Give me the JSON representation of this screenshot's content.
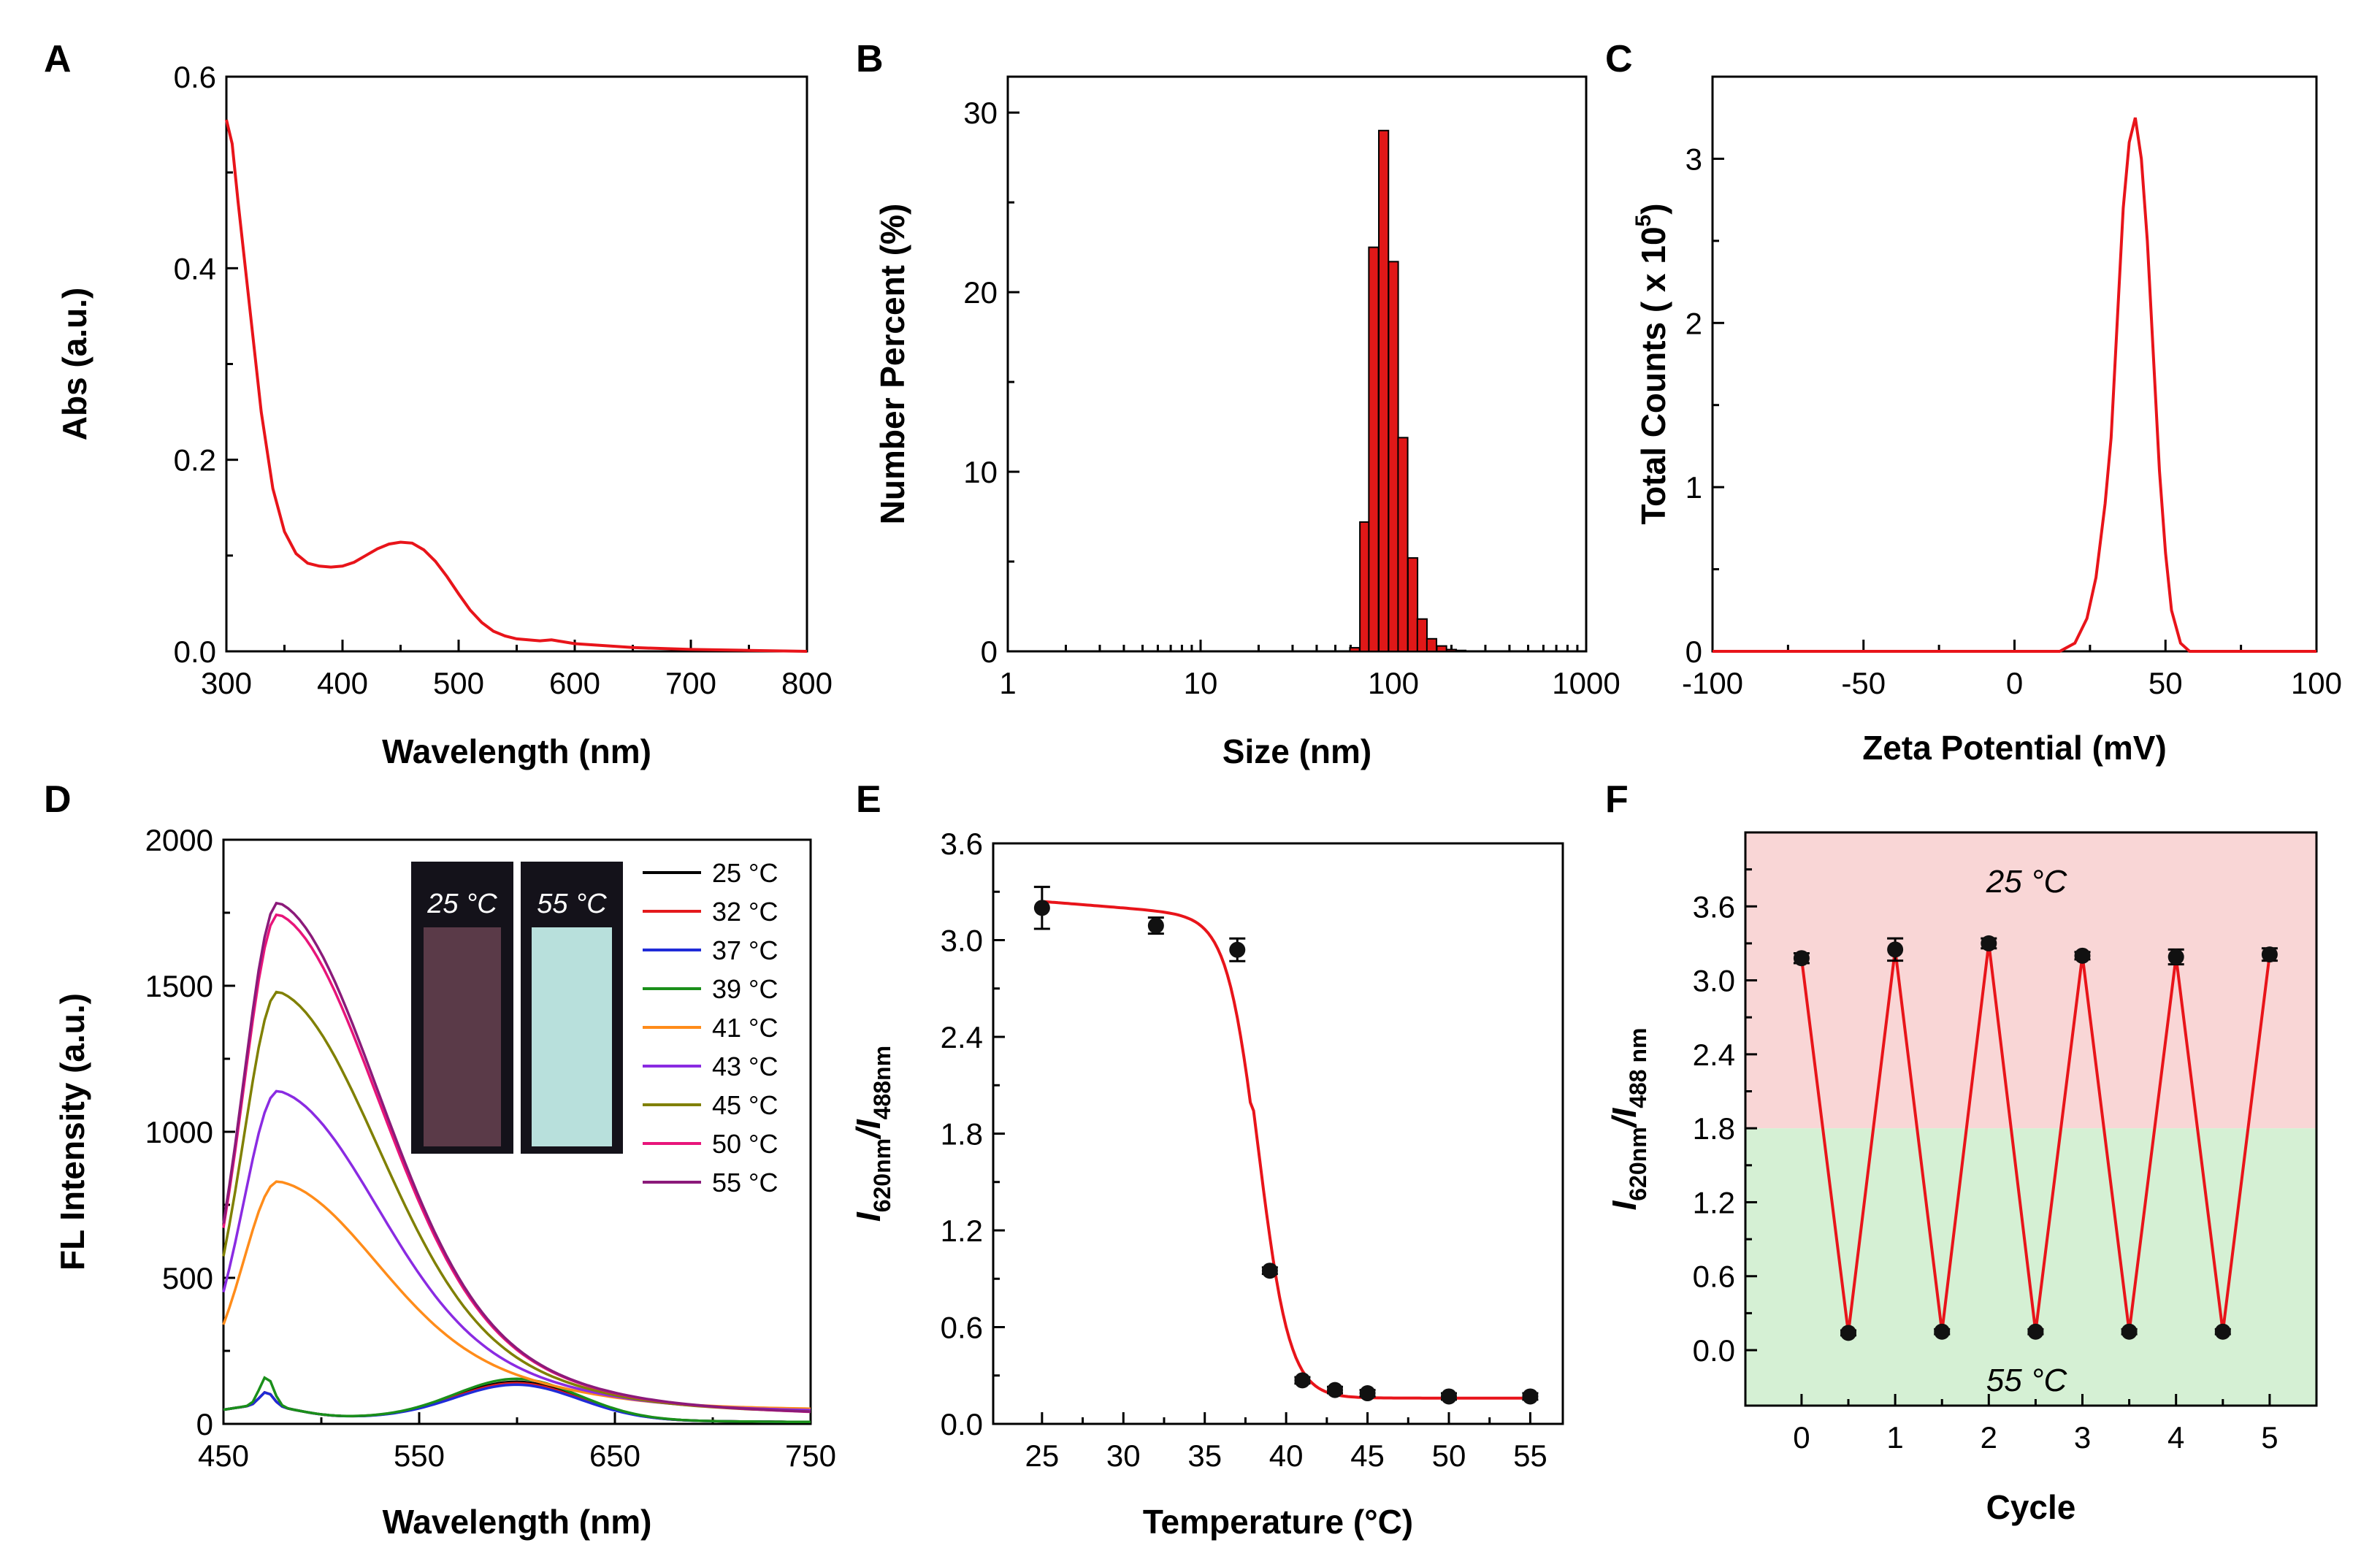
{
  "colors": {
    "red": "#e8141a",
    "axis": "#000000",
    "band_top": "#f9d6d6",
    "band_bottom": "#d5f0d4",
    "bar": "#e01818"
  },
  "chart_data": [
    {
      "panel": "A",
      "type": "line",
      "xlabel": "Wavelength (nm)",
      "ylabel": "Abs (a.u.)",
      "xlim": [
        300,
        800
      ],
      "ylim": [
        0,
        0.6
      ],
      "xticks": [
        "300",
        "400",
        "500",
        "600",
        "700",
        "800"
      ],
      "yticks": [
        "0.0",
        "0.2",
        "0.4",
        "0.6"
      ],
      "series": [
        {
          "name": "Abs",
          "color": "#e8141a",
          "x": [
            300,
            305,
            310,
            320,
            330,
            340,
            350,
            360,
            370,
            380,
            390,
            400,
            410,
            420,
            430,
            440,
            450,
            460,
            470,
            480,
            490,
            500,
            510,
            520,
            530,
            540,
            550,
            560,
            570,
            580,
            590,
            600,
            650,
            700,
            750,
            800
          ],
          "y": [
            0.555,
            0.53,
            0.47,
            0.36,
            0.25,
            0.17,
            0.125,
            0.102,
            0.092,
            0.089,
            0.088,
            0.089,
            0.093,
            0.1,
            0.107,
            0.112,
            0.114,
            0.113,
            0.106,
            0.094,
            0.078,
            0.06,
            0.043,
            0.03,
            0.021,
            0.016,
            0.013,
            0.012,
            0.011,
            0.012,
            0.01,
            0.008,
            0.004,
            0.002,
            0.001,
            0.0
          ]
        }
      ]
    },
    {
      "panel": "B",
      "type": "bar",
      "xscale": "log",
      "xlabel": "Size (nm)",
      "ylabel": "Number Percent (%)",
      "xlim": [
        1,
        1000
      ],
      "ylim": [
        0,
        32
      ],
      "xticks": [
        "1",
        "10",
        "100",
        "1000"
      ],
      "yticks": [
        "0",
        "10",
        "20",
        "30"
      ],
      "categories": [
        63,
        71,
        79,
        89,
        100,
        112,
        126,
        141,
        158,
        178,
        200,
        224
      ],
      "values": [
        0.2,
        7.2,
        22.5,
        29.0,
        21.7,
        11.9,
        5.2,
        1.8,
        0.7,
        0.3,
        0.1,
        0.05
      ]
    },
    {
      "panel": "C",
      "type": "line",
      "xlabel": "Zeta Potential (mV)",
      "ylabel": "Total Counts ( x 10",
      "ylabel_sup": "5",
      "ylabel_end": ")",
      "xlim": [
        -100,
        100
      ],
      "ylim": [
        0,
        3.5
      ],
      "xticks": [
        "-100",
        "-50",
        "0",
        "50",
        "100"
      ],
      "yticks": [
        "0",
        "1",
        "2",
        "3"
      ],
      "series": [
        {
          "name": "Zeta",
          "color": "#e8141a",
          "x": [
            -100,
            15,
            20,
            24,
            27,
            30,
            32,
            34,
            36,
            38,
            40,
            42,
            44,
            46,
            48,
            50,
            52,
            55,
            58,
            100
          ],
          "y": [
            0,
            0,
            0.05,
            0.2,
            0.45,
            0.9,
            1.3,
            2.0,
            2.7,
            3.1,
            3.25,
            3.0,
            2.5,
            1.8,
            1.1,
            0.6,
            0.25,
            0.05,
            0,
            0
          ]
        }
      ]
    },
    {
      "panel": "D",
      "type": "line",
      "xlabel": "Wavelength (nm)",
      "ylabel": "FL Intensity (a.u.)",
      "xlim": [
        450,
        750
      ],
      "ylim": [
        0,
        2000
      ],
      "xticks": [
        "450",
        "550",
        "650",
        "750"
      ],
      "yticks": [
        "0",
        "500",
        "1000",
        "1500",
        "2000"
      ],
      "inset_labels": [
        "25 °C",
        "55 °C"
      ],
      "series": [
        {
          "name": "25 °C",
          "color": "#000000",
          "peak": 95,
          "long": 130
        },
        {
          "name": "32 °C",
          "color": "#e41a1c",
          "peak": 95,
          "long": 125
        },
        {
          "name": "37 °C",
          "color": "#1f2bd8",
          "peak": 95,
          "long": 120
        },
        {
          "name": "39 °C",
          "color": "#1a8f1a",
          "peak": 200,
          "long": 140
        },
        {
          "name": "41 °C",
          "color": "#ff8c1a",
          "peak": 790,
          "long": 40
        },
        {
          "name": "43 °C",
          "color": "#8a2be2",
          "peak": 1110,
          "long": 30
        },
        {
          "name": "45 °C",
          "color": "#808000",
          "peak": 1460,
          "long": 20
        },
        {
          "name": "50 °C",
          "color": "#e8157a",
          "peak": 1730,
          "long": 15
        },
        {
          "name": "55 °C",
          "color": "#8b1a7a",
          "peak": 1770,
          "long": 15
        }
      ]
    },
    {
      "panel": "E",
      "type": "scatter",
      "xlabel": "Temperature (°C)",
      "ylabel_main": "I",
      "ylabel_sub1": "620nm",
      "ylabel_mid": "/I",
      "ylabel_sub2": "488nm",
      "xlim": [
        22,
        57
      ],
      "ylim": [
        0,
        3.6
      ],
      "xticks": [
        "25",
        "30",
        "35",
        "40",
        "45",
        "50",
        "55"
      ],
      "yticks": [
        "0.0",
        "0.6",
        "1.2",
        "1.8",
        "2.4",
        "3.0",
        "3.6"
      ],
      "x": [
        25,
        32,
        37,
        39,
        41,
        43,
        45,
        50,
        55
      ],
      "y": [
        3.2,
        3.09,
        2.94,
        0.95,
        0.27,
        0.21,
        0.19,
        0.17,
        0.17
      ],
      "err": [
        0.13,
        0.05,
        0.07,
        0.02,
        0.02,
        0.02,
        0.02,
        0.02,
        0.02
      ],
      "fit": {
        "top": 3.24,
        "bottom": 0.16,
        "x0": 38.3,
        "dx": 0.95,
        "slope": 0.008
      }
    },
    {
      "panel": "F",
      "type": "line",
      "xlabel": "Cycle",
      "ylabel_main": "I",
      "ylabel_sub1": "620nm",
      "ylabel_mid": "/I",
      "ylabel_sub2": "488 nm",
      "xlim": [
        -0.6,
        5.5
      ],
      "ylim": [
        -0.45,
        4.2
      ],
      "band_split": 1.8,
      "annotations": [
        "25 °C",
        "55 °C"
      ],
      "xticks": [
        "0",
        "1",
        "2",
        "3",
        "4",
        "5"
      ],
      "yticks": [
        "0.0",
        "0.6",
        "1.2",
        "1.8",
        "2.4",
        "3.0",
        "3.6"
      ],
      "x": [
        0,
        0.5,
        1,
        1.5,
        2,
        2.5,
        3,
        3.5,
        4,
        4.5,
        5
      ],
      "y": [
        3.18,
        0.14,
        3.25,
        0.15,
        3.3,
        0.15,
        3.2,
        0.15,
        3.19,
        0.15,
        3.21
      ],
      "err": [
        0.04,
        0.02,
        0.09,
        0.02,
        0.04,
        0.02,
        0.03,
        0.02,
        0.06,
        0.02,
        0.05
      ]
    }
  ],
  "panel_labels": [
    "A",
    "B",
    "C",
    "D",
    "E",
    "F"
  ]
}
